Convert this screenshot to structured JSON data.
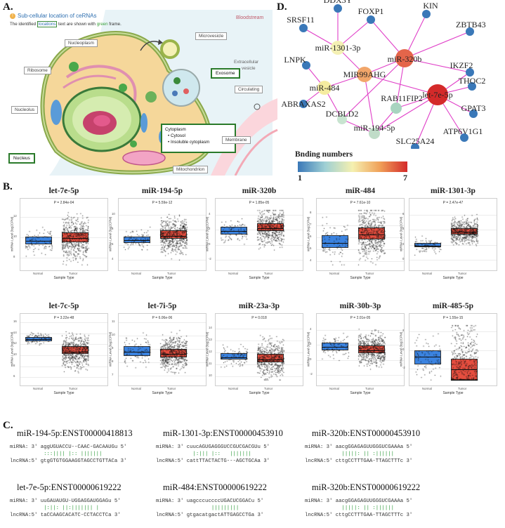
{
  "panels": {
    "a": "A.",
    "b": "B.",
    "c": "C.",
    "d": "D."
  },
  "panel_a": {
    "title": "Sub-cellular location of ceRNAs",
    "subtitle_pre": "The identified ",
    "subtitle_hl": "locations",
    "subtitle_mid": " text are shown with ",
    "subtitle_green": "green",
    "subtitle_post": " frame.",
    "labels": {
      "bloodstream": "Bloodstream",
      "microvesicle": "Microvesicle",
      "extracellular": "Extracellular",
      "vesicle": "vesicle",
      "nucleoplasm": "Nucleoplasm",
      "ribosome": "Ribosome",
      "exosome": "Exosome",
      "circulating": "Circulating",
      "nucleolus": "Nucleolus",
      "cytoplasm": "Cytoplasm",
      "cytosol": "• Cytosol",
      "insoluble": "• Insoluble cytoplasm",
      "membrane": "Membrane",
      "nucleus": "Nucleus",
      "mitochondrion": "Mitochondrion"
    }
  },
  "network": {
    "legend_title": "Bnding numbers",
    "legend_min": "1",
    "legend_max": "7",
    "nodes": [
      {
        "id": "DDX3Y",
        "label": "DDX3Y",
        "color": "#3a78b8"
      },
      {
        "id": "FOXP1",
        "label": "FOXP1",
        "color": "#3a78b8"
      },
      {
        "id": "KIN",
        "label": "KIN",
        "color": "#3a78b8"
      },
      {
        "id": "SRSF11",
        "label": "SRSF11",
        "color": "#3a78b8"
      },
      {
        "id": "ZBTB43",
        "label": "ZBTB43",
        "color": "#3a78b8"
      },
      {
        "id": "miR-1301-3p",
        "label": "miR-1301-3p",
        "color": "#f4f0b4"
      },
      {
        "id": "miR-320b",
        "label": "miR-320b",
        "color": "#e4654a"
      },
      {
        "id": "IKZF2",
        "label": "IKZF2",
        "color": "#3a78b8"
      },
      {
        "id": "LNPK",
        "label": "LNPK",
        "color": "#3a78b8"
      },
      {
        "id": "MIR99AHG",
        "label": "MIR99AHG",
        "color": "#f2a66a"
      },
      {
        "id": "miR-484",
        "label": "miR-484",
        "color": "#f5eca0"
      },
      {
        "id": "let-7e-5p",
        "label": "let-7e-5p",
        "color": "#d42a2a"
      },
      {
        "id": "THOC2",
        "label": "THOC2",
        "color": "#3a78b8"
      },
      {
        "id": "ABRAXAS2",
        "label": "ABRAXAS2",
        "color": "#3a78b8"
      },
      {
        "id": "RAB11FIP2",
        "label": "RAB11FIP2",
        "color": "#a8d4c0"
      },
      {
        "id": "DCBLD2",
        "label": "DCBLD2",
        "color": "#c8e4d0"
      },
      {
        "id": "GPAT3",
        "label": "GPAT3",
        "color": "#3a78b8"
      },
      {
        "id": "miR-194-5p",
        "label": "miR-194-5p",
        "color": "#c0dcc8"
      },
      {
        "id": "ATP6V1G1",
        "label": "ATP6V1G1",
        "color": "#3a78b8"
      },
      {
        "id": "SLC25A24",
        "label": "SLC25A24",
        "color": "#3a78b8"
      }
    ],
    "edges": [
      [
        "miR-1301-3p",
        "DDX3Y"
      ],
      [
        "miR-1301-3p",
        "FOXP1"
      ],
      [
        "miR-1301-3p",
        "SRSF11"
      ],
      [
        "miR-1301-3p",
        "MIR99AHG"
      ],
      [
        "miR-320b",
        "KIN"
      ],
      [
        "miR-320b",
        "ZBTB43"
      ],
      [
        "miR-320b",
        "IKZF2"
      ],
      [
        "miR-320b",
        "MIR99AHG"
      ],
      [
        "miR-320b",
        "RAB11FIP2"
      ],
      [
        "miR-320b",
        "DCBLD2"
      ],
      [
        "miR-320b",
        "FOXP1"
      ],
      [
        "miR-484",
        "LNPK"
      ],
      [
        "miR-484",
        "ABRAXAS2"
      ],
      [
        "miR-484",
        "MIR99AHG"
      ],
      [
        "miR-484",
        "DCBLD2"
      ],
      [
        "let-7e-5p",
        "IKZF2"
      ],
      [
        "let-7e-5p",
        "THOC2"
      ],
      [
        "let-7e-5p",
        "GPAT3"
      ],
      [
        "let-7e-5p",
        "ATP6V1G1"
      ],
      [
        "let-7e-5p",
        "SLC25A24"
      ],
      [
        "let-7e-5p",
        "RAB11FIP2"
      ],
      [
        "let-7e-5p",
        "MIR99AHG"
      ],
      [
        "let-7e-5p",
        "miR-194-5p"
      ],
      [
        "miR-194-5p",
        "MIR99AHG"
      ],
      [
        "miR-194-5p",
        "DCBLD2"
      ],
      [
        "miR-194-5p",
        "RAB11FIP2"
      ]
    ]
  },
  "chart_data": [
    {
      "type": "box",
      "title": "let-7e-5p",
      "pvalue": "P = 2.84e-04",
      "ylabel": "miRNA Level (log2CPM)",
      "xlabel": "Sample Type",
      "categories": [
        "Normal",
        "Tumor"
      ],
      "yticks": [
        "8",
        "10",
        "12"
      ],
      "ylim": [
        7,
        13
      ],
      "normal": {
        "q1": 9.3,
        "median": 9.7,
        "q3": 10.1
      },
      "tumor": {
        "q1": 9.5,
        "median": 10.0,
        "q3": 10.5
      }
    },
    {
      "type": "box",
      "title": "miR-194-5p",
      "pvalue": "P = 5.59e-12",
      "ylabel": "miRNA Level (log2CPM)",
      "xlabel": "Sample Type",
      "categories": [
        "Normal",
        "Tumor"
      ],
      "yticks": [
        "4",
        "6",
        "8",
        "10"
      ],
      "ylim": [
        3,
        11
      ],
      "normal": {
        "q1": 6.3,
        "median": 6.7,
        "q3": 7.1
      },
      "tumor": {
        "q1": 6.8,
        "median": 7.3,
        "q3": 7.9
      }
    },
    {
      "type": "box",
      "title": "miR-320b",
      "pvalue": "P = 1.85e-05",
      "ylabel": "miRNA Level (log2CPM)",
      "xlabel": "Sample Type",
      "categories": [
        "Normal",
        "Tumor"
      ],
      "yticks": [
        "-2",
        "0",
        "2",
        "4"
      ],
      "ylim": [
        -3,
        5
      ],
      "normal": {
        "q1": 1.4,
        "median": 1.9,
        "q3": 2.4
      },
      "tumor": {
        "q1": 1.8,
        "median": 2.3,
        "q3": 2.9
      }
    },
    {
      "type": "box",
      "title": "miR-484",
      "pvalue": "P = 7.61e-10",
      "ylabel": "miRNA Level (log2CPM)",
      "xlabel": "Sample Type",
      "categories": [
        "Normal",
        "Tumor"
      ],
      "yticks": [
        "4",
        "5",
        "6",
        "7",
        "8"
      ],
      "ylim": [
        3.5,
        8.5
      ],
      "normal": {
        "q1": 5.1,
        "median": 5.6,
        "q3": 6.2
      },
      "tumor": {
        "q1": 5.8,
        "median": 6.3,
        "q3": 6.8
      }
    },
    {
      "type": "box",
      "title": "miR-1301-3p",
      "pvalue": "P = 2.47e-47",
      "ylabel": "miRNA Level (log2CPM)",
      "xlabel": "Sample Type",
      "categories": [
        "Normal",
        "Tumor"
      ],
      "yticks": [
        "0",
        "2",
        "4",
        "6"
      ],
      "ylim": [
        -1,
        7
      ],
      "normal": {
        "q1": 1.7,
        "median": 2.0,
        "q3": 2.3
      },
      "tumor": {
        "q1": 3.4,
        "median": 3.8,
        "q3": 4.2
      }
    },
    {
      "type": "box",
      "title": "let-7c-5p",
      "pvalue": "P = 3.22e-48",
      "ylabel": "miRNA Level (log2CPM)",
      "xlabel": "Sample Type",
      "categories": [
        "Normal",
        "Tumor"
      ],
      "yticks": [
        "6",
        "8",
        "10",
        "12",
        "14",
        "16"
      ],
      "ylim": [
        5,
        16
      ],
      "normal": {
        "q1": 12.6,
        "median": 13.0,
        "q3": 13.3
      },
      "tumor": {
        "q1": 10.2,
        "median": 10.8,
        "q3": 11.6
      }
    },
    {
      "type": "box",
      "title": "let-7i-5p",
      "pvalue": "P = 6.06e-06",
      "ylabel": "miRNA Level (log2CPM)",
      "xlabel": "Sample Type",
      "categories": [
        "Normal",
        "Tumor"
      ],
      "yticks": [
        "7",
        "8",
        "9",
        "10",
        "11"
      ],
      "ylim": [
        6.5,
        11
      ],
      "normal": {
        "q1": 8.5,
        "median": 8.85,
        "q3": 9.2
      },
      "tumor": {
        "q1": 8.4,
        "median": 8.7,
        "q3": 9.0
      }
    },
    {
      "type": "box",
      "title": "miR-23a-3p",
      "pvalue": "P = 0.018",
      "ylabel": "miRNA Level (log2CPM)",
      "xlabel": "Sample Type",
      "categories": [
        "Normal",
        "Tumor"
      ],
      "yticks": [
        "10",
        "11",
        "12",
        "13",
        "14"
      ],
      "ylim": [
        9.5,
        14.5
      ],
      "normal": {
        "q1": 11.4,
        "median": 11.65,
        "q3": 11.95
      },
      "tumor": {
        "q1": 11.2,
        "median": 11.5,
        "q3": 11.9
      }
    },
    {
      "type": "box",
      "title": "miR-30b-3p",
      "pvalue": "P = 2.01e-05",
      "ylabel": "miRNA Level (log2CPM)",
      "xlabel": "Sample Type",
      "categories": [
        "Normal",
        "Tumor"
      ],
      "yticks": [
        "-2",
        "0",
        "2",
        "4"
      ],
      "ylim": [
        -3,
        5
      ],
      "normal": {
        "q1": 1.3,
        "median": 1.8,
        "q3": 2.3
      },
      "tumor": {
        "q1": 0.9,
        "median": 1.4,
        "q3": 1.9
      }
    },
    {
      "type": "box",
      "title": "miR-485-5p",
      "pvalue": "P = 1.55e-15",
      "ylabel": "miRNA Level (log2CPM)",
      "xlabel": "Sample Type",
      "categories": [
        "Normal",
        "Tumor"
      ],
      "yticks": [
        "-2",
        "0",
        "2"
      ],
      "ylim": [
        -3.5,
        3
      ],
      "normal": {
        "q1": -1.5,
        "median": -0.6,
        "q3": 0.0
      },
      "tumor": {
        "q1": -3.3,
        "median": -2.0,
        "q3": -0.9
      }
    }
  ],
  "panel_c": [
    {
      "title": "miR-194-5p:ENST00000418813",
      "mirna": "miRNA: 3' aggUGUACCU--CAAC-GACAAUGu 5'",
      "bars": "           :::|||| |:: |||||||",
      "lnc": "lncRNA:5' gtgGTGTGGAAGGTAGCCTGTTACa 3'"
    },
    {
      "title": "miR-1301-3p:ENST00000453910",
      "mirna": "miRNA: 3' cuucAGUGAGGGUCCGUCGACGUu 5'",
      "bars": "            |:||| |::   |||||||",
      "lnc": "lncRNA:5' cattTTACTACTG---AGCTGCAa 3'"
    },
    {
      "title": "miR-320b:ENST00000453910",
      "mirna": "miRNA: 3' aacgGGAGAGUUGGGUCGAAAa 5'",
      "bars": "            |||||: || :||||||",
      "lnc": "lncRNA:5' cttgCCTTTGAA-TTAGCTTTc 3'"
    },
    {
      "title": "let-7e-5p:ENST00000619222",
      "mirna": "miRNA: 3' uuGAUAUGU-UGGAGGAUGGAGu 5'",
      "bars": "           |:||: ||:||||||| |",
      "lnc": "lncRNA:5' taCCAAGCACATC-CCTACCTCa 3'"
    },
    {
      "title": "miR-484:ENST00000619222",
      "mirna": "miRNA: 3' uagcccuccccUGACUCGGACu 5'",
      "bars": "                  |||||||||",
      "lnc": "lncRNA:5' gtgacatgactATTGAGCCTGa 3'"
    },
    {
      "title": "miR-320b:ENST00000619222",
      "mirna": "miRNA: 3' aacgGGAGAGUUGGGUCGAAAa 5'",
      "bars": "            |||||: || :||||||",
      "lnc": "lncRNA:5' cttgCCTTTGAA-TTAGCTTTc 3'"
    }
  ]
}
